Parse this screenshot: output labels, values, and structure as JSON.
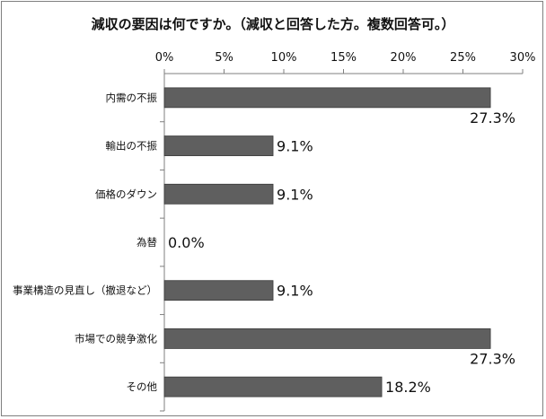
{
  "chart_data": {
    "type": "bar",
    "orientation": "horizontal",
    "title": "減収の要因は何ですか。（減収と回答した方。複数回答可。）",
    "categories": [
      "内需の不振",
      "輸出の不振",
      "価格のダウン",
      "為替",
      "事業構造の見直し（撤退など）",
      "市場での競争激化",
      "その他"
    ],
    "values": [
      27.3,
      9.1,
      9.1,
      0.0,
      9.1,
      27.3,
      18.2
    ],
    "data_labels": [
      "27.3%",
      "9.1%",
      "9.1%",
      "0.0%",
      "9.1%",
      "27.3%",
      "18.2%"
    ],
    "xticks": [
      "0%",
      "5%",
      "10%",
      "15%",
      "20%",
      "25%",
      "30%"
    ],
    "xlim": [
      0,
      30
    ],
    "axis_position": "top",
    "grid": false,
    "legend": "none",
    "bar_color": "#5f5f5f",
    "xlabel": "",
    "ylabel": ""
  }
}
